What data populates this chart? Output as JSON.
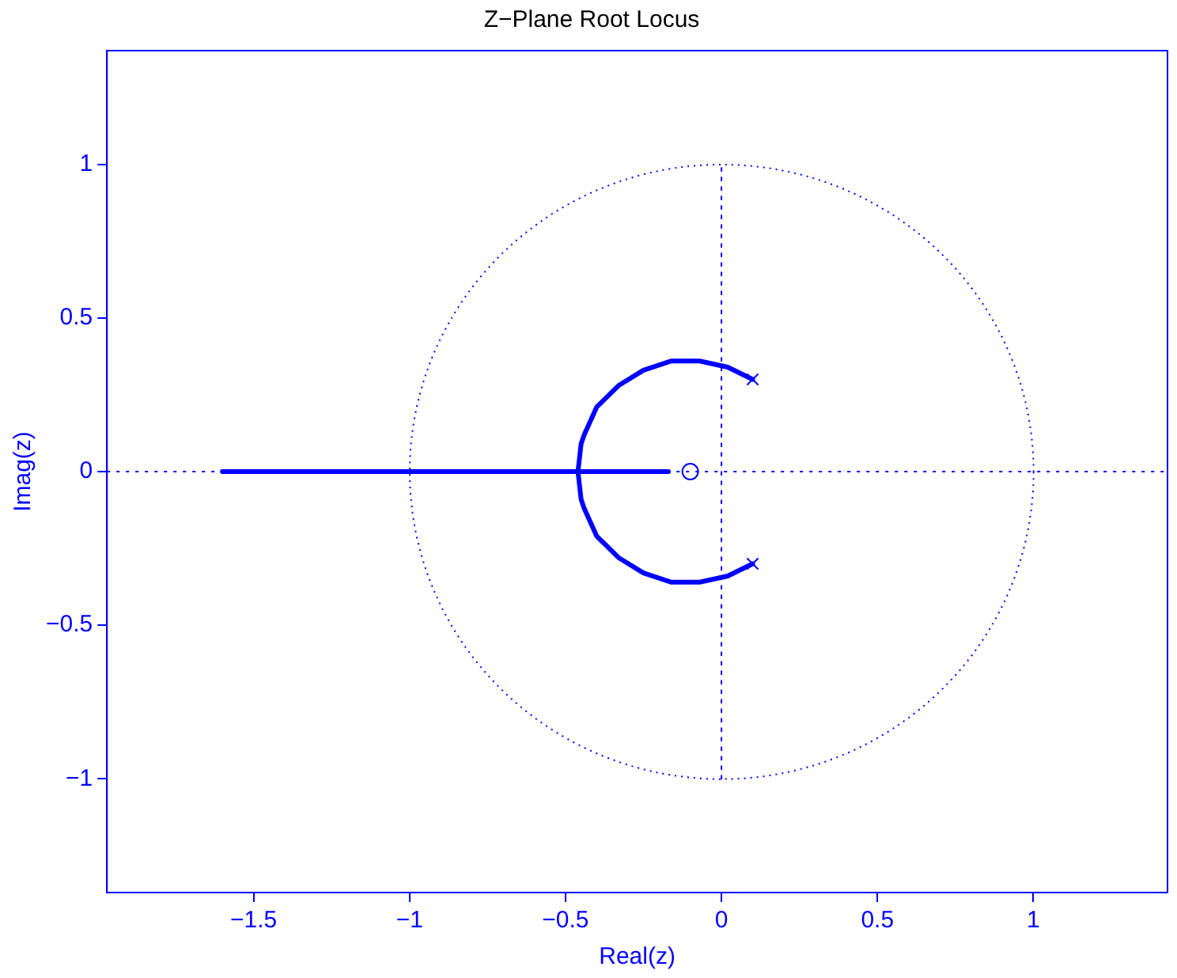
{
  "chart_data": {
    "type": "line",
    "title": "Z−Plane Root Locus",
    "xlabel": "Real(z)",
    "ylabel": "Imag(z)",
    "xlim": [
      -1.97,
      1.43
    ],
    "ylim": [
      -1.37,
      1.37
    ],
    "xticks": [
      -1.5,
      -1,
      -0.5,
      0,
      0.5,
      1
    ],
    "yticks": [
      -1,
      -0.5,
      0,
      0.5,
      1
    ],
    "grid": false,
    "legend": false,
    "ref_lines": [
      {
        "axis": "y",
        "value": 0,
        "color": "#0000ff",
        "line_style": "dotted"
      }
    ],
    "series": [
      {
        "color": "#0000ff",
        "line_style": "solid",
        "marker": "none",
        "x": [
          -1.6,
          -0.46,
          -0.45,
          -0.44,
          -0.4,
          -0.33,
          -0.25,
          -0.16,
          -0.07,
          0.02,
          0.1
        ],
        "values": [
          0,
          0,
          0.09,
          0.12,
          0.21,
          0.28,
          0.33,
          0.36,
          0.36,
          0.34,
          0.3
        ]
      },
      {
        "color": "#0000ff",
        "line_style": "solid",
        "marker": "none",
        "x": [
          -0.46,
          -0.45,
          -0.44,
          -0.4,
          -0.33,
          -0.25,
          -0.16,
          -0.07,
          0.02,
          0.1
        ],
        "values": [
          0,
          -0.09,
          -0.12,
          -0.21,
          -0.28,
          -0.33,
          -0.36,
          -0.36,
          -0.34,
          -0.3
        ]
      },
      {
        "color": "#0000ff",
        "line_style": "solid",
        "marker": "none",
        "x": [
          -0.46,
          -0.17
        ],
        "values": [
          0,
          0
        ]
      },
      {
        "color": "#0000ff",
        "line_style": "dotted",
        "marker": "none",
        "x": [
          0,
          0
        ],
        "values": [
          -1,
          1
        ]
      },
      {
        "type": "scatter",
        "color": "#0000ff",
        "marker": "cross",
        "x": [
          0.1,
          0.1
        ],
        "values": [
          0.3,
          -0.3
        ]
      },
      {
        "type": "scatter",
        "color": "#0000ff",
        "marker": "circle",
        "x": [
          -0.1
        ],
        "values": [
          0
        ]
      }
    ]
  }
}
